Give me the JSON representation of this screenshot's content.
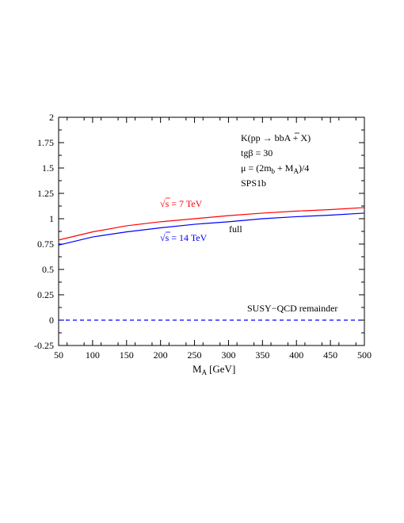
{
  "chart_data": {
    "type": "line",
    "xlabel": "M",
    "xlabel_sub": "A",
    "xlabel_unit": "[GeV]",
    "xlim": [
      50,
      500
    ],
    "ylim": [
      -0.25,
      2
    ],
    "x_ticks": [
      50,
      100,
      150,
      200,
      250,
      300,
      350,
      400,
      450,
      500
    ],
    "y_ticks": [
      -0.25,
      0,
      0.25,
      0.5,
      0.75,
      1,
      1.25,
      1.5,
      1.75,
      2
    ],
    "y_tick_labels": [
      "-0.25",
      "0",
      "0.25",
      "0.5",
      "0.75",
      "1",
      "1.25",
      "1.5",
      "1.75",
      "2"
    ],
    "grid": false,
    "series": [
      {
        "name": "√s = 7 TeV",
        "color": "#ff0000",
        "dash": "solid",
        "x": [
          50,
          100,
          150,
          200,
          250,
          300,
          350,
          400,
          450,
          500
        ],
        "values": [
          0.79,
          0.87,
          0.93,
          0.97,
          1.0,
          1.03,
          1.055,
          1.075,
          1.09,
          1.11
        ]
      },
      {
        "name": "√s = 14 TeV",
        "color": "#0000ff",
        "dash": "solid",
        "x": [
          50,
          100,
          150,
          200,
          250,
          300,
          350,
          400,
          450,
          500
        ],
        "values": [
          0.74,
          0.82,
          0.87,
          0.91,
          0.945,
          0.97,
          1.0,
          1.02,
          1.035,
          1.055
        ]
      },
      {
        "name": "SUSY-QCD remainder",
        "color": "#0000ff",
        "dash": "dashed",
        "x": [
          50,
          500
        ],
        "values": [
          0.0,
          0.0
        ]
      }
    ],
    "annotations": {
      "proc_prefix": "K(pp ",
      "proc_arrow": "→",
      "proc_b1": " b",
      "proc_b2": "b",
      "proc_suffix": "A + X)",
      "tgb_line": "tgβ = 30",
      "mu_prefix": "μ = (2m",
      "mu_sub_b": "b",
      "mu_mid": " + M",
      "mu_sub_a": "A",
      "mu_suffix": ")/4",
      "sps": "SPS1b",
      "full": "full",
      "remainder": "SUSY−QCD remainder",
      "label_7_sqrt": "√",
      "label_7_rest": "s = 7 TeV",
      "label_14_sqrt": "√",
      "label_14_rest": "s = 14 TeV"
    }
  }
}
